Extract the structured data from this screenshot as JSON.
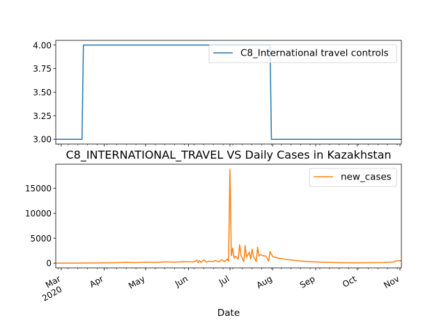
{
  "chart_data": [
    {
      "type": "line",
      "title": "",
      "xlabel": "",
      "ylabel": "",
      "x_range": [
        "2020-02-26",
        "2020-11-02"
      ],
      "ylim": [
        2.95,
        4.05
      ],
      "yticks": [
        "3.00",
        "3.25",
        "3.50",
        "3.75",
        "4.00"
      ],
      "grid": false,
      "legend_position": "upper right",
      "series": [
        {
          "name": "C8_International travel controls",
          "color": "#1f77b4",
          "points": [
            [
              "2020-02-26",
              3
            ],
            [
              "2020-03-16",
              3
            ],
            [
              "2020-03-17",
              4
            ],
            [
              "2020-07-30",
              4
            ],
            [
              "2020-07-31",
              3
            ],
            [
              "2020-11-02",
              3
            ]
          ]
        }
      ]
    },
    {
      "type": "line",
      "title": "C8_INTERNATIONAL_TRAVEL VS Daily Cases in Kazakhstan",
      "xlabel": "Date",
      "ylabel": "",
      "x_range": [
        "2020-02-26",
        "2020-11-02"
      ],
      "ylim": [
        -950,
        19800
      ],
      "yticks": [
        "0",
        "5000",
        "10000",
        "15000"
      ],
      "xticks": [
        {
          "date": "2020-03-01",
          "label": "Mar",
          "sublabel": "2020"
        },
        {
          "date": "2020-04-01",
          "label": "Apr"
        },
        {
          "date": "2020-05-01",
          "label": "May"
        },
        {
          "date": "2020-06-01",
          "label": "Jun"
        },
        {
          "date": "2020-07-01",
          "label": "Jul"
        },
        {
          "date": "2020-08-01",
          "label": "Aug"
        },
        {
          "date": "2020-09-01",
          "label": "Sep"
        },
        {
          "date": "2020-10-01",
          "label": "Oct"
        },
        {
          "date": "2020-11-01",
          "label": "Nov"
        }
      ],
      "grid": false,
      "legend_position": "upper right",
      "series": [
        {
          "name": "new_cases",
          "color": "#ff7f0e",
          "points": [
            [
              "2020-02-26",
              0
            ],
            [
              "2020-03-13",
              0
            ],
            [
              "2020-03-20",
              20
            ],
            [
              "2020-03-27",
              50
            ],
            [
              "2020-04-03",
              80
            ],
            [
              "2020-04-10",
              100
            ],
            [
              "2020-04-17",
              150
            ],
            [
              "2020-04-24",
              120
            ],
            [
              "2020-05-01",
              200
            ],
            [
              "2020-05-08",
              150
            ],
            [
              "2020-05-15",
              250
            ],
            [
              "2020-05-22",
              200
            ],
            [
              "2020-05-29",
              300
            ],
            [
              "2020-06-05",
              250
            ],
            [
              "2020-06-07",
              600
            ],
            [
              "2020-06-08",
              100
            ],
            [
              "2020-06-09",
              500
            ],
            [
              "2020-06-10",
              150
            ],
            [
              "2020-06-12",
              650
            ],
            [
              "2020-06-14",
              200
            ],
            [
              "2020-06-16",
              400
            ],
            [
              "2020-06-18",
              300
            ],
            [
              "2020-06-21",
              500
            ],
            [
              "2020-06-23",
              200
            ],
            [
              "2020-06-25",
              700
            ],
            [
              "2020-06-27",
              300
            ],
            [
              "2020-06-29",
              800
            ],
            [
              "2020-06-30",
              400
            ],
            [
              "2020-07-01",
              18800
            ],
            [
              "2020-07-02",
              1500
            ],
            [
              "2020-07-03",
              3000
            ],
            [
              "2020-07-04",
              1000
            ],
            [
              "2020-07-05",
              1400
            ],
            [
              "2020-07-07",
              800
            ],
            [
              "2020-07-08",
              3700
            ],
            [
              "2020-07-09",
              1500
            ],
            [
              "2020-07-11",
              300
            ],
            [
              "2020-07-12",
              3500
            ],
            [
              "2020-07-13",
              1200
            ],
            [
              "2020-07-15",
              2200
            ],
            [
              "2020-07-16",
              800
            ],
            [
              "2020-07-17",
              2800
            ],
            [
              "2020-07-18",
              1400
            ],
            [
              "2020-07-20",
              300
            ],
            [
              "2020-07-21",
              3200
            ],
            [
              "2020-07-22",
              1400
            ],
            [
              "2020-07-23",
              1700
            ],
            [
              "2020-07-25",
              1500
            ],
            [
              "2020-07-27",
              1400
            ],
            [
              "2020-07-29",
              400
            ],
            [
              "2020-07-30",
              2300
            ],
            [
              "2020-08-01",
              1300
            ],
            [
              "2020-08-05",
              1000
            ],
            [
              "2020-08-10",
              800
            ],
            [
              "2020-08-15",
              600
            ],
            [
              "2020-08-20",
              450
            ],
            [
              "2020-08-25",
              350
            ],
            [
              "2020-08-31",
              250
            ],
            [
              "2020-09-10",
              150
            ],
            [
              "2020-09-20",
              100
            ],
            [
              "2020-10-01",
              80
            ],
            [
              "2020-10-10",
              90
            ],
            [
              "2020-10-20",
              120
            ],
            [
              "2020-10-25",
              200
            ],
            [
              "2020-10-28",
              250
            ],
            [
              "2020-10-29",
              450
            ],
            [
              "2020-10-31",
              500
            ],
            [
              "2020-11-02",
              480
            ]
          ]
        }
      ]
    }
  ]
}
